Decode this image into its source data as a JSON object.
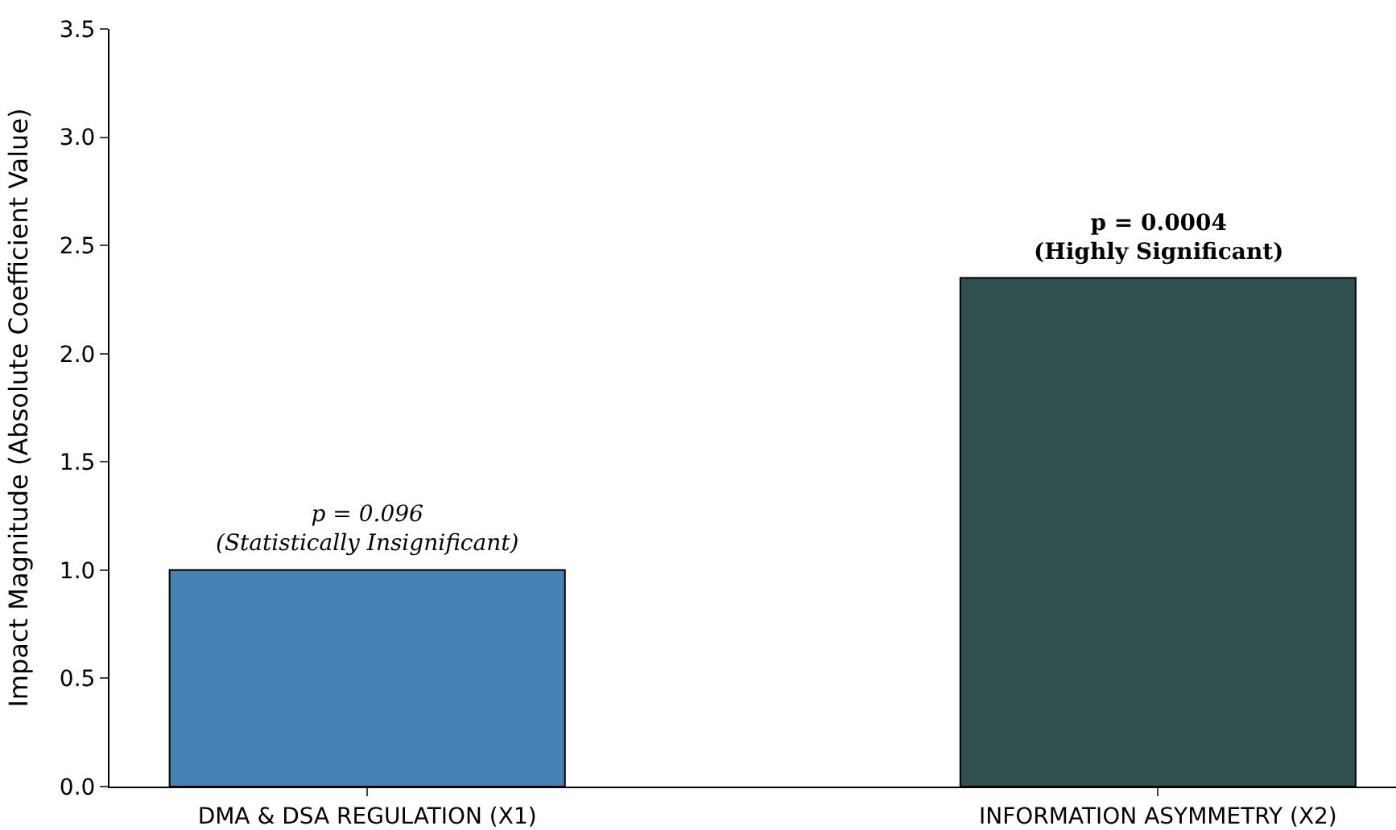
{
  "chart_data": {
    "type": "bar",
    "ylabel": "Impact Magnitude (Absolute Coefficient Value)",
    "categories": [
      "DMA & DSA REGULATION (X1)",
      "INFORMATION ASYMMETRY (X2)"
    ],
    "values": [
      1.0,
      2.35
    ],
    "colors": [
      "#4682b4",
      "#2f4f4f"
    ],
    "ylim": [
      0,
      3.5
    ],
    "yticks": [
      {
        "value": 0,
        "label": "0.0"
      },
      {
        "value": 0.5,
        "label": "0.5"
      },
      {
        "value": 1,
        "label": "1.0"
      },
      {
        "value": 1.5,
        "label": "1.5"
      },
      {
        "value": 2,
        "label": "2.0"
      },
      {
        "value": 2.5,
        "label": "2.5"
      },
      {
        "value": 3,
        "label": "3.0"
      },
      {
        "value": 3.5,
        "label": "3.5"
      }
    ],
    "annotations": [
      {
        "text": "p = 0.096\n(Statistically Insignificant)",
        "x": "DMA & DSA REGULATION (X1)",
        "y": 1.0
      },
      {
        "text": "p = 0.0004\n(Highly Significant)",
        "x": "INFORMATION ASYMMETRY (X2)",
        "y": 2.35
      }
    ]
  }
}
